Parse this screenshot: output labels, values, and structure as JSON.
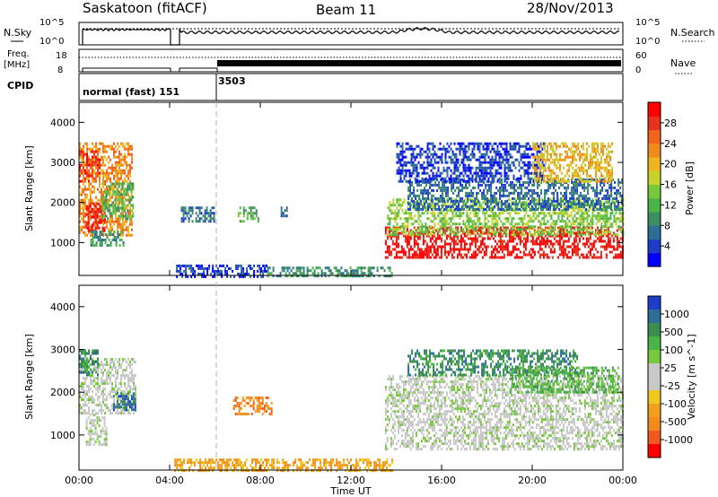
{
  "header": {
    "station": "Saskatoon (fitACF)",
    "beam": "Beam 11",
    "date": "28/Nov/2013"
  },
  "noise_panel": {
    "left_label": "N.Sky",
    "right_label": "N.Search",
    "y_ticks": [
      "10^5",
      "10^0"
    ]
  },
  "freq_panel": {
    "left_label_line1": "Freq.",
    "left_label_line2": "[MHz]",
    "left_ticks": [
      "18",
      "8"
    ],
    "right_label": "Nave",
    "right_ticks": [
      "60",
      "0"
    ]
  },
  "cpid_panel": {
    "label": "CPID",
    "segments": [
      {
        "text": "normal (fast) 151",
        "start_hour": 0
      },
      {
        "text": "3503",
        "start_hour": 6
      }
    ]
  },
  "colors": {
    "noise_sky": "#000000",
    "noise_search": "#000000",
    "dashed_marker": "#b0b0b0"
  },
  "chart_data": [
    {
      "type": "heatmap",
      "title": "",
      "xlabel": "Time UT",
      "ylabel": "Slant Range [km]",
      "xlim": [
        0,
        24
      ],
      "ylim": [
        180,
        4500
      ],
      "x_ticks": [
        "00:00",
        "04:00",
        "08:00",
        "12:00",
        "16:00",
        "20:00",
        "00:00"
      ],
      "y_ticks": [
        "1000",
        "2000",
        "3000",
        "4000"
      ],
      "y_tick_values": [
        1000,
        2000,
        3000,
        4000
      ],
      "colorbar": {
        "label": "Power [dB]",
        "ticks": [
          "4",
          "8",
          "12",
          "16",
          "20",
          "24",
          "28"
        ],
        "colors": [
          "#0000ff",
          "#1e3cc8",
          "#2d6e96",
          "#3c8c64",
          "#4bb446",
          "#78c83c",
          "#c8d22d",
          "#f0b41e",
          "#f08c1e",
          "#f0641e",
          "#e6321e",
          "#ff0000"
        ]
      },
      "regions": [
        {
          "t0": 0.0,
          "t1": 2.3,
          "r0": 1200,
          "r1": 3500,
          "color_index": 8
        },
        {
          "t0": 0.3,
          "t1": 1.1,
          "r0": 1300,
          "r1": 2000,
          "color_index": 11
        },
        {
          "t0": 1.0,
          "t1": 2.4,
          "r0": 1600,
          "r1": 2500,
          "color_index": 4
        },
        {
          "t0": 0.0,
          "t1": 0.9,
          "r0": 2500,
          "r1": 3300,
          "color_index": 10
        },
        {
          "t0": 0.5,
          "t1": 2.0,
          "r0": 900,
          "r1": 1300,
          "color_index": 3
        },
        {
          "t0": 4.2,
          "t1": 8.3,
          "r0": 180,
          "r1": 450,
          "color_index": 1
        },
        {
          "t0": 4.5,
          "t1": 6.0,
          "r0": 1500,
          "r1": 1900,
          "color_index": 2
        },
        {
          "t0": 7.0,
          "t1": 7.9,
          "r0": 1500,
          "r1": 1900,
          "color_index": 4
        },
        {
          "t0": 8.9,
          "t1": 9.2,
          "r0": 1600,
          "r1": 1900,
          "color_index": 2
        },
        {
          "t0": 8.3,
          "t1": 13.8,
          "r0": 180,
          "r1": 400,
          "color_index": 3
        },
        {
          "t0": 13.5,
          "t1": 24.0,
          "r0": 600,
          "r1": 1400,
          "color_index": 11
        },
        {
          "t0": 13.6,
          "t1": 24.0,
          "r0": 1200,
          "r1": 2100,
          "color_index": 5
        },
        {
          "t0": 14.5,
          "t1": 24.0,
          "r0": 1800,
          "r1": 2600,
          "color_index": 2
        },
        {
          "t0": 14.0,
          "t1": 20.5,
          "r0": 2500,
          "r1": 3500,
          "color_index": 1
        },
        {
          "t0": 20.0,
          "t1": 23.5,
          "r0": 2500,
          "r1": 3500,
          "color_index": 7
        }
      ]
    },
    {
      "type": "heatmap",
      "title": "",
      "xlabel": "Time UT",
      "ylabel": "Slant Range [km]",
      "xlim": [
        0,
        24
      ],
      "ylim": [
        180,
        4500
      ],
      "x_ticks": [
        "00:00",
        "04:00",
        "08:00",
        "12:00",
        "16:00",
        "20:00",
        "00:00"
      ],
      "y_ticks": [
        "1000",
        "2000",
        "3000",
        "4000"
      ],
      "y_tick_values": [
        1000,
        2000,
        3000,
        4000
      ],
      "colorbar": {
        "label": "Velocity [m s^-1]",
        "ticks": [
          "1000",
          "500",
          "100",
          "25",
          "-25",
          "-100",
          "-500",
          "-1000"
        ],
        "colors": [
          "#1e3cc8",
          "#2d6e96",
          "#3c8c50",
          "#4bb446",
          "#78c83c",
          "#c8c8c8",
          "#c8c8c8",
          "#f0c81e",
          "#f0a01e",
          "#f08c1e",
          "#f05a1e",
          "#ff0000"
        ]
      },
      "regions": [
        {
          "t0": 0.0,
          "t1": 2.5,
          "r0": 1500,
          "r1": 2800,
          "color_index": 5
        },
        {
          "t0": 0.0,
          "t1": 0.8,
          "r0": 2400,
          "r1": 3000,
          "color_index": 2
        },
        {
          "t0": 0.3,
          "t1": 1.2,
          "r0": 800,
          "r1": 1500,
          "color_index": 5
        },
        {
          "t0": 1.5,
          "t1": 2.5,
          "r0": 1600,
          "r1": 2000,
          "color_index": 1
        },
        {
          "t0": 4.2,
          "t1": 13.8,
          "r0": 180,
          "r1": 450,
          "color_index": 8
        },
        {
          "t0": 6.8,
          "t1": 8.5,
          "r0": 1500,
          "r1": 1900,
          "color_index": 9
        },
        {
          "t0": 13.5,
          "t1": 24.0,
          "r0": 700,
          "r1": 2400,
          "color_index": 5
        },
        {
          "t0": 14.5,
          "t1": 22.0,
          "r0": 2400,
          "r1": 3000,
          "color_index": 2
        },
        {
          "t0": 19.0,
          "t1": 23.8,
          "r0": 2000,
          "r1": 2600,
          "color_index": 3
        }
      ]
    }
  ]
}
